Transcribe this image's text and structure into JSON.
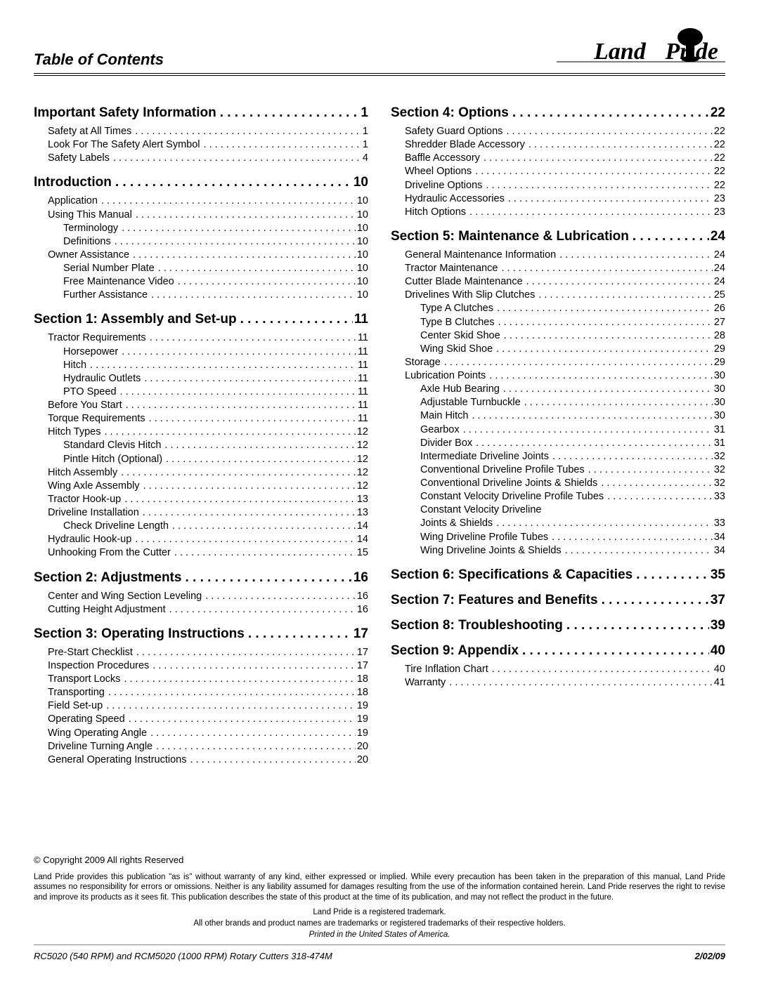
{
  "title": "Table of Contents",
  "brand": "Land Pride",
  "columns": [
    [
      {
        "type": "section",
        "label": "Important Safety Information",
        "page": "1"
      },
      {
        "type": "entry",
        "indent": 0,
        "label": "Safety at All Times",
        "page": "1"
      },
      {
        "type": "entry",
        "indent": 0,
        "label": "Look For The Safety Alert Symbol",
        "page": "1"
      },
      {
        "type": "entry",
        "indent": 0,
        "label": "Safety Labels",
        "page": "4"
      },
      {
        "type": "section",
        "label": "Introduction",
        "page": "10"
      },
      {
        "type": "entry",
        "indent": 0,
        "label": "Application",
        "page": "10"
      },
      {
        "type": "entry",
        "indent": 0,
        "label": "Using This Manual",
        "page": "10"
      },
      {
        "type": "entry",
        "indent": 1,
        "label": "Terminology",
        "page": "10"
      },
      {
        "type": "entry",
        "indent": 1,
        "label": "Definitions",
        "page": "10"
      },
      {
        "type": "entry",
        "indent": 0,
        "label": "Owner Assistance",
        "page": "10"
      },
      {
        "type": "entry",
        "indent": 1,
        "label": "Serial Number Plate",
        "page": "10"
      },
      {
        "type": "entry",
        "indent": 1,
        "label": "Free Maintenance Video",
        "page": "10"
      },
      {
        "type": "entry",
        "indent": 1,
        "label": "Further Assistance",
        "page": "10"
      },
      {
        "type": "section",
        "label": "Section 1: Assembly and Set-up",
        "page": "11"
      },
      {
        "type": "entry",
        "indent": 0,
        "label": "Tractor Requirements",
        "page": "11"
      },
      {
        "type": "entry",
        "indent": 1,
        "label": "Horsepower",
        "page": "11"
      },
      {
        "type": "entry",
        "indent": 1,
        "label": "Hitch",
        "page": "11"
      },
      {
        "type": "entry",
        "indent": 1,
        "label": "Hydraulic Outlets",
        "page": "11"
      },
      {
        "type": "entry",
        "indent": 1,
        "label": "PTO Speed",
        "page": "11"
      },
      {
        "type": "entry",
        "indent": 0,
        "label": "Before You Start",
        "page": "11"
      },
      {
        "type": "entry",
        "indent": 0,
        "label": "Torque Requirements",
        "page": "11"
      },
      {
        "type": "entry",
        "indent": 0,
        "label": "Hitch Types",
        "page": "12"
      },
      {
        "type": "entry",
        "indent": 1,
        "label": "Standard Clevis Hitch",
        "page": "12"
      },
      {
        "type": "entry",
        "indent": 1,
        "label": "Pintle Hitch (Optional)",
        "page": "12"
      },
      {
        "type": "entry",
        "indent": 0,
        "label": "Hitch Assembly",
        "page": "12"
      },
      {
        "type": "entry",
        "indent": 0,
        "label": "Wing Axle Assembly",
        "page": "12"
      },
      {
        "type": "entry",
        "indent": 0,
        "label": "Tractor Hook-up",
        "page": "13"
      },
      {
        "type": "entry",
        "indent": 0,
        "label": "Driveline Installation",
        "page": "13"
      },
      {
        "type": "entry",
        "indent": 1,
        "label": "Check Driveline Length",
        "page": "14"
      },
      {
        "type": "entry",
        "indent": 0,
        "label": "Hydraulic Hook-up",
        "page": "14"
      },
      {
        "type": "entry",
        "indent": 0,
        "label": "Unhooking From the Cutter",
        "page": "15"
      },
      {
        "type": "section",
        "label": "Section 2: Adjustments",
        "page": "16"
      },
      {
        "type": "entry",
        "indent": 0,
        "label": "Center and Wing Section Leveling",
        "page": "16"
      },
      {
        "type": "entry",
        "indent": 0,
        "label": "Cutting Height Adjustment",
        "page": "16"
      },
      {
        "type": "section",
        "label": "Section 3: Operating Instructions",
        "page": "17"
      },
      {
        "type": "entry",
        "indent": 0,
        "label": "Pre-Start Checklist",
        "page": "17"
      },
      {
        "type": "entry",
        "indent": 0,
        "label": "Inspection Procedures",
        "page": "17"
      },
      {
        "type": "entry",
        "indent": 0,
        "label": "Transport Locks",
        "page": "18"
      },
      {
        "type": "entry",
        "indent": 0,
        "label": "Transporting",
        "page": "18"
      },
      {
        "type": "entry",
        "indent": 0,
        "label": "Field Set-up",
        "page": "19"
      },
      {
        "type": "entry",
        "indent": 0,
        "label": "Operating Speed",
        "page": "19"
      },
      {
        "type": "entry",
        "indent": 0,
        "label": "Wing Operating Angle",
        "page": "19"
      },
      {
        "type": "entry",
        "indent": 0,
        "label": "Driveline Turning Angle",
        "page": "20"
      },
      {
        "type": "entry",
        "indent": 0,
        "label": "General Operating Instructions",
        "page": "20"
      }
    ],
    [
      {
        "type": "section",
        "label": "Section 4: Options",
        "page": "22"
      },
      {
        "type": "entry",
        "indent": 0,
        "label": "Safety Guard Options",
        "page": "22"
      },
      {
        "type": "entry",
        "indent": 0,
        "label": "Shredder Blade Accessory",
        "page": "22"
      },
      {
        "type": "entry",
        "indent": 0,
        "label": "Baffle Accessory",
        "page": "22"
      },
      {
        "type": "entry",
        "indent": 0,
        "label": "Wheel Options",
        "page": "22"
      },
      {
        "type": "entry",
        "indent": 0,
        "label": "Driveline Options",
        "page": "22"
      },
      {
        "type": "entry",
        "indent": 0,
        "label": "Hydraulic Accessories",
        "page": "23"
      },
      {
        "type": "entry",
        "indent": 0,
        "label": "Hitch Options",
        "page": "23"
      },
      {
        "type": "section",
        "label": "Section 5: Maintenance & Lubrication",
        "page": "24"
      },
      {
        "type": "entry",
        "indent": 0,
        "label": "General Maintenance Information",
        "page": "24"
      },
      {
        "type": "entry",
        "indent": 0,
        "label": "Tractor Maintenance",
        "page": "24"
      },
      {
        "type": "entry",
        "indent": 0,
        "label": "Cutter Blade Maintenance",
        "page": "24"
      },
      {
        "type": "entry",
        "indent": 0,
        "label": "Drivelines With Slip Clutches",
        "page": "25"
      },
      {
        "type": "entry",
        "indent": 1,
        "label": "Type A Clutches",
        "page": "26"
      },
      {
        "type": "entry",
        "indent": 1,
        "label": "Type B Clutches",
        "page": "27"
      },
      {
        "type": "entry",
        "indent": 1,
        "label": "Center Skid Shoe",
        "page": "28"
      },
      {
        "type": "entry",
        "indent": 1,
        "label": "Wing Skid Shoe",
        "page": "29"
      },
      {
        "type": "entry",
        "indent": 0,
        "label": "Storage",
        "page": "29"
      },
      {
        "type": "entry",
        "indent": 0,
        "label": "Lubrication Points",
        "page": "30"
      },
      {
        "type": "entry",
        "indent": 1,
        "label": "Axle Hub Bearing",
        "page": "30"
      },
      {
        "type": "entry",
        "indent": 1,
        "label": "Adjustable Turnbuckle",
        "page": "30"
      },
      {
        "type": "entry",
        "indent": 1,
        "label": "Main Hitch",
        "page": "30"
      },
      {
        "type": "entry",
        "indent": 1,
        "label": "Gearbox",
        "page": "31"
      },
      {
        "type": "entry",
        "indent": 1,
        "label": "Divider Box",
        "page": "31"
      },
      {
        "type": "entry",
        "indent": 1,
        "label": "Intermediate Driveline Joints",
        "page": "32"
      },
      {
        "type": "entry",
        "indent": 1,
        "label": "Conventional Driveline Profile Tubes",
        "page": "32"
      },
      {
        "type": "entry",
        "indent": 1,
        "label": "Conventional Driveline Joints & Shields",
        "page": "32"
      },
      {
        "type": "entry",
        "indent": 1,
        "label": "Constant Velocity Driveline Profile Tubes",
        "page": "33"
      },
      {
        "type": "entry",
        "indent": 1,
        "label": "Constant Velocity Driveline",
        "nopagemerge": true
      },
      {
        "type": "entry",
        "indent": 1,
        "label": "Joints & Shields",
        "page": "33"
      },
      {
        "type": "entry",
        "indent": 1,
        "label": "Wing Driveline Profile Tubes",
        "page": "34"
      },
      {
        "type": "entry",
        "indent": 1,
        "label": "Wing Driveline Joints & Shields",
        "page": "34"
      },
      {
        "type": "section",
        "label": "Section 6: Specifications & Capacities",
        "page": "35"
      },
      {
        "type": "section",
        "label": "Section 7: Features and Benefits",
        "page": "37"
      },
      {
        "type": "section",
        "label": "Section 8: Troubleshooting",
        "page": "39"
      },
      {
        "type": "section",
        "label": "Section 9: Appendix",
        "page": "40"
      },
      {
        "type": "entry",
        "indent": 0,
        "label": "Tire Inflation Chart",
        "page": "40"
      },
      {
        "type": "entry",
        "indent": 0,
        "label": "Warranty",
        "page": "41"
      }
    ]
  ],
  "footer": {
    "copyright": "© Copyright 2009 All rights Reserved",
    "disclaimer": "Land Pride provides this publication \"as is\" without warranty of any kind, either expressed or implied. While every precaution has been taken in the preparation of this manual, Land Pride assumes no responsibility for errors or omissions. Neither is any liability assumed for damages resulting from the use of the information contained herein. Land Pride reserves the right to revise and improve its products as it sees fit. This publication describes the state of this product at the time of its publication, and may not reflect the product in the future.",
    "trademark1": "Land Pride is a registered trademark.",
    "trademark2": "All other brands and product names are trademarks or registered trademarks of their respective holders.",
    "printed": "Printed in the United States of America.",
    "model": "RC5020 (540 RPM) and RCM5020 (1000 RPM) Rotary Cutters   318-474M",
    "date": "2/02/09"
  }
}
